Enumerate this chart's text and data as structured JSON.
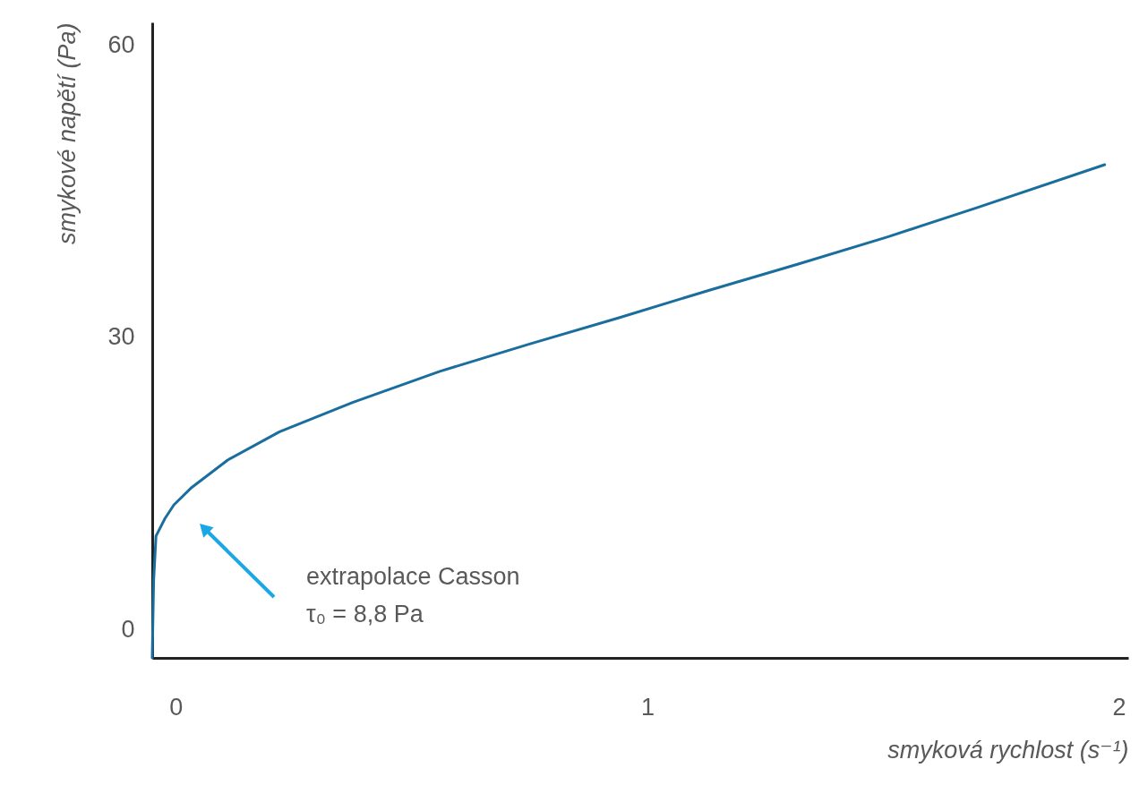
{
  "chart_data": {
    "type": "line",
    "xlabel": "smyková rychlost (s⁻¹)",
    "ylabel": "smykové napětí (Pa)",
    "xlim": [
      -0.05,
      2.02
    ],
    "ylim": [
      -2.9,
      62.3
    ],
    "xticks": [
      0,
      1,
      2
    ],
    "yticks": [
      0,
      30,
      60
    ],
    "grid": false,
    "marker": "none",
    "line_style": "solid",
    "series": [
      {
        "color": "#1a6e9e",
        "x": [
          -0.05,
          -0.047,
          -0.042,
          -0.023,
          -0.004,
          0.034,
          0.11,
          0.22,
          0.375,
          0.56,
          0.75,
          0.94,
          1.13,
          1.32,
          1.51,
          1.7,
          1.97
        ],
        "values": [
          -2.9,
          5.0,
          9.6,
          11.4,
          12.8,
          14.6,
          17.4,
          20.3,
          23.3,
          26.5,
          29.3,
          32.0,
          34.8,
          37.5,
          40.3,
          43.3,
          47.7
        ]
      }
    ],
    "annotations": [
      "extrapolace Casson\nτ₀ = 8,8 Pa"
    ]
  }
}
